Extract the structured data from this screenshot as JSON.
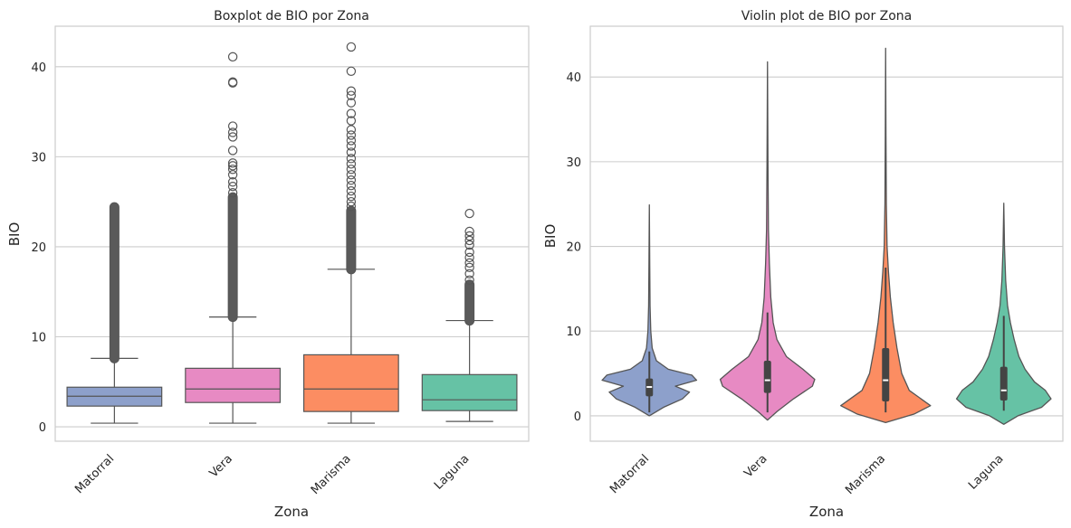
{
  "chart_data": [
    {
      "type": "boxplot",
      "title": "Boxplot de BIO por Zona",
      "xlabel": "Zona",
      "ylabel": "BIO",
      "ylim": [
        -1.6,
        44.5
      ],
      "yticks": [
        0,
        10,
        20,
        30,
        40
      ],
      "grid": "horizontal",
      "categories": [
        "Matorral",
        "Vera",
        "Marisma",
        "Laguna"
      ],
      "colors": [
        "#8da0cb",
        "#e78ac3",
        "#fc8d62",
        "#66c2a5"
      ],
      "boxes": [
        {
          "min": 0.4,
          "q1": 2.3,
          "median": 3.4,
          "q3": 4.4,
          "max": 7.6,
          "outlier_min": 7.6,
          "outlier_max": 24.4
        },
        {
          "min": 0.4,
          "q1": 2.7,
          "median": 4.2,
          "q3": 6.5,
          "max": 12.2,
          "outlier_min": 12.2,
          "outlier_max": 25.5,
          "outliers": [
            26.0,
            26.7,
            27.2,
            28.0,
            28.6,
            29.0,
            29.3,
            30.7,
            32.2,
            32.7,
            33.4,
            38.2,
            38.3,
            41.1
          ]
        },
        {
          "min": 0.4,
          "q1": 1.7,
          "median": 4.2,
          "q3": 8.0,
          "max": 17.5,
          "outlier_min": 17.5,
          "outlier_max": 24.0,
          "outliers": [
            24.5,
            25.0,
            25.6,
            26.2,
            26.8,
            27.4,
            28.0,
            28.6,
            29.2,
            29.8,
            30.5,
            31.2,
            31.8,
            32.4,
            33.0,
            34.0,
            34.8,
            36.0,
            36.8,
            37.3,
            39.5,
            42.2
          ]
        },
        {
          "min": 0.6,
          "q1": 1.8,
          "median": 3.0,
          "q3": 5.8,
          "max": 11.8,
          "outlier_min": 11.8,
          "outlier_max": 15.8,
          "outliers": [
            16.3,
            17.0,
            17.7,
            18.2,
            18.8,
            19.4,
            20.2,
            20.7,
            21.2,
            21.7,
            23.7
          ]
        }
      ]
    },
    {
      "type": "violin",
      "title": "Violin plot de BIO por Zona",
      "xlabel": "Zona",
      "ylabel": "BIO",
      "ylim": [
        -3.0,
        46.0
      ],
      "yticks": [
        0,
        10,
        20,
        30,
        40
      ],
      "grid": "horizontal",
      "categories": [
        "Matorral",
        "Vera",
        "Marisma",
        "Laguna"
      ],
      "colors": [
        "#8da0cb",
        "#e78ac3",
        "#fc8d62",
        "#66c2a5"
      ],
      "violins": [
        {
          "low": 0.0,
          "high": 24.9,
          "q1": 2.3,
          "median": 3.4,
          "q3": 4.4,
          "whisker_low": 0.4,
          "whisker_high": 7.6,
          "profile": [
            [
              0.0,
              0.0
            ],
            [
              1.0,
              0.3
            ],
            [
              2.0,
              0.7
            ],
            [
              2.8,
              0.85
            ],
            [
              3.5,
              0.55
            ],
            [
              4.2,
              1.0
            ],
            [
              4.8,
              0.9
            ],
            [
              5.5,
              0.4
            ],
            [
              6.5,
              0.15
            ],
            [
              8.0,
              0.06
            ],
            [
              10.0,
              0.03
            ],
            [
              13.0,
              0.015
            ],
            [
              18.0,
              0.008
            ],
            [
              24.9,
              0.0
            ]
          ]
        },
        {
          "low": -0.5,
          "high": 41.8,
          "q1": 2.7,
          "median": 4.2,
          "q3": 6.5,
          "whisker_low": 0.4,
          "whisker_high": 12.2,
          "profile": [
            [
              -0.5,
              0.0
            ],
            [
              0.5,
              0.2
            ],
            [
              2.0,
              0.55
            ],
            [
              3.5,
              0.95
            ],
            [
              4.3,
              1.0
            ],
            [
              5.5,
              0.75
            ],
            [
              7.0,
              0.4
            ],
            [
              9.0,
              0.2
            ],
            [
              11.0,
              0.12
            ],
            [
              14.0,
              0.07
            ],
            [
              18.0,
              0.04
            ],
            [
              22.0,
              0.02
            ],
            [
              30.0,
              0.01
            ],
            [
              41.8,
              0.0
            ]
          ]
        },
        {
          "low": -0.8,
          "high": 43.4,
          "q1": 1.7,
          "median": 4.2,
          "q3": 8.0,
          "whisker_low": 0.4,
          "whisker_high": 17.5,
          "profile": [
            [
              -0.8,
              0.0
            ],
            [
              0.2,
              0.6
            ],
            [
              1.2,
              0.95
            ],
            [
              2.0,
              0.75
            ],
            [
              3.0,
              0.5
            ],
            [
              5.0,
              0.34
            ],
            [
              8.0,
              0.24
            ],
            [
              11.0,
              0.16
            ],
            [
              14.0,
              0.1
            ],
            [
              17.0,
              0.06
            ],
            [
              20.0,
              0.03
            ],
            [
              25.0,
              0.015
            ],
            [
              33.0,
              0.007
            ],
            [
              43.4,
              0.0
            ]
          ]
        },
        {
          "low": -1.0,
          "high": 25.1,
          "q1": 1.8,
          "median": 3.0,
          "q3": 5.8,
          "whisker_low": 0.6,
          "whisker_high": 11.8,
          "profile": [
            [
              -1.0,
              0.0
            ],
            [
              0.0,
              0.3
            ],
            [
              1.0,
              0.8
            ],
            [
              2.0,
              1.0
            ],
            [
              3.0,
              0.88
            ],
            [
              4.0,
              0.65
            ],
            [
              5.5,
              0.45
            ],
            [
              7.0,
              0.32
            ],
            [
              9.0,
              0.22
            ],
            [
              11.0,
              0.14
            ],
            [
              13.0,
              0.08
            ],
            [
              16.0,
              0.04
            ],
            [
              20.0,
              0.015
            ],
            [
              25.1,
              0.0
            ]
          ]
        }
      ]
    }
  ]
}
